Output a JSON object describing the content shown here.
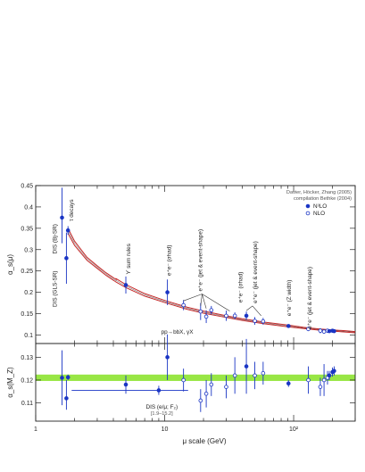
{
  "chart_data": [
    {
      "type": "line",
      "name": "alpha_s running",
      "ylabel": "α_s(μ)",
      "xscale": "log",
      "xlim": [
        1,
        300
      ],
      "ylim": [
        0.08,
        0.45
      ],
      "yticks": [
        0.1,
        0.15,
        0.2,
        0.25,
        0.3,
        0.35,
        0.4,
        0.45
      ],
      "ytick_labels": [
        "0.1",
        "0.15",
        "0.2",
        "0.25",
        "0.3",
        "0.35",
        "0.4",
        "0.45"
      ],
      "credit_lines": [
        "Davier, Höcker, Zhang (2005)",
        "compilation Bethke (2004)"
      ],
      "legend": [
        {
          "label": "N³LO",
          "marker": "filled"
        },
        {
          "label": "NLO",
          "marker": "open"
        }
      ],
      "band_curve": {
        "mu": [
          1.78,
          2,
          2.5,
          3,
          3.5,
          4.2,
          4.2,
          5,
          7,
          10,
          15,
          20,
          30,
          40,
          60,
          91.2,
          120,
          160,
          200,
          250,
          300
        ],
        "upper": [
          0.35,
          0.32,
          0.282,
          0.262,
          0.246,
          0.23,
          0.232,
          0.218,
          0.197,
          0.181,
          0.165,
          0.156,
          0.145,
          0.138,
          0.13,
          0.123,
          0.118,
          0.114,
          0.112,
          0.11,
          0.108
        ],
        "lower": [
          0.338,
          0.31,
          0.275,
          0.256,
          0.24,
          0.224,
          0.224,
          0.211,
          0.191,
          0.176,
          0.16,
          0.151,
          0.141,
          0.134,
          0.126,
          0.119,
          0.115,
          0.111,
          0.109,
          0.107,
          0.105
        ]
      },
      "points": [
        {
          "mu": 1.6,
          "alpha": 0.375,
          "err_lo": 0.06,
          "err_hi": 0.07,
          "marker": "filled"
        },
        {
          "mu": 1.73,
          "alpha": 0.28,
          "err_lo": 0.06,
          "err_hi": 0.06,
          "marker": "filled"
        },
        {
          "mu": 1.78,
          "alpha": 0.345,
          "err_lo": 0.01,
          "err_hi": 0.01,
          "marker": "filled"
        },
        {
          "mu": 5,
          "alpha": 0.217,
          "err_lo": 0.02,
          "err_hi": 0.02,
          "marker": "filled"
        },
        {
          "mu": 10.5,
          "alpha": 0.2,
          "err_lo": 0.03,
          "err_hi": 0.03,
          "marker": "filled"
        },
        {
          "mu": 14,
          "alpha": 0.17,
          "err_lo": 0.012,
          "err_hi": 0.012,
          "marker": "open"
        },
        {
          "mu": 19,
          "alpha": 0.155,
          "err_lo": 0.02,
          "err_hi": 0.02,
          "marker": "open"
        },
        {
          "mu": 21,
          "alpha": 0.143,
          "err_lo": 0.015,
          "err_hi": 0.015,
          "marker": "open"
        },
        {
          "mu": 23,
          "alpha": 0.158,
          "err_lo": 0.01,
          "err_hi": 0.01,
          "marker": "open"
        },
        {
          "mu": 30,
          "alpha": 0.145,
          "err_lo": 0.012,
          "err_hi": 0.012,
          "marker": "open"
        },
        {
          "mu": 35,
          "alpha": 0.145,
          "err_lo": 0.008,
          "err_hi": 0.008,
          "marker": "open"
        },
        {
          "mu": 43,
          "alpha": 0.145,
          "err_lo": 0.01,
          "err_hi": 0.01,
          "marker": "filled"
        },
        {
          "mu": 50,
          "alpha": 0.133,
          "err_lo": 0.009,
          "err_hi": 0.009,
          "marker": "open"
        },
        {
          "mu": 58,
          "alpha": 0.132,
          "err_lo": 0.008,
          "err_hi": 0.008,
          "marker": "open"
        },
        {
          "mu": 91.2,
          "alpha": 0.121,
          "err_lo": 0.003,
          "err_hi": 0.003,
          "marker": "filled"
        },
        {
          "mu": 130,
          "alpha": 0.114,
          "err_lo": 0.005,
          "err_hi": 0.005,
          "marker": "open"
        },
        {
          "mu": 161,
          "alpha": 0.11,
          "err_lo": 0.006,
          "err_hi": 0.006,
          "marker": "open"
        },
        {
          "mu": 172,
          "alpha": 0.108,
          "err_lo": 0.005,
          "err_hi": 0.005,
          "marker": "open"
        },
        {
          "mu": 183,
          "alpha": 0.11,
          "err_lo": 0.004,
          "err_hi": 0.004,
          "marker": "open"
        },
        {
          "mu": 189,
          "alpha": 0.109,
          "err_lo": 0.004,
          "err_hi": 0.004,
          "marker": "filled"
        },
        {
          "mu": 200,
          "alpha": 0.11,
          "err_lo": 0.004,
          "err_hi": 0.004,
          "marker": "filled"
        },
        {
          "mu": 206,
          "alpha": 0.109,
          "err_lo": 0.004,
          "err_hi": 0.004,
          "marker": "filled"
        }
      ],
      "annotations": [
        {
          "text": "DIS (Bj-SR)",
          "mu": 1.45,
          "alpha": 0.325,
          "vertical": true
        },
        {
          "text": "τ decays",
          "mu": 1.95,
          "alpha": 0.392,
          "vertical": true
        },
        {
          "text": "DIS (GLS-SR)",
          "mu": 1.45,
          "alpha": 0.208,
          "vertical": true
        },
        {
          "text": "ϒ sum rules",
          "mu": 5.4,
          "alpha": 0.278,
          "vertical": true
        },
        {
          "text": "e⁺e⁻ (σhad)",
          "mu": 11.2,
          "alpha": 0.275,
          "vertical": true
        },
        {
          "text": "e⁺e⁻ (jet & event-shape)",
          "mu": 19.5,
          "alpha": 0.275,
          "vertical": true
        },
        {
          "text": "e⁺e⁻ (σhad)",
          "mu": 40,
          "alpha": 0.212,
          "vertical": true
        },
        {
          "text": "e⁺e⁻ (jet & event-shape)",
          "mu": 52,
          "alpha": 0.247,
          "vertical": true
        },
        {
          "text": "e⁺e⁻ (Z width)",
          "mu": 95,
          "alpha": 0.187,
          "vertical": true
        },
        {
          "text": "e⁺e⁻ (jet & event-shape)",
          "mu": 137,
          "alpha": 0.187,
          "vertical": true
        },
        {
          "text": "pp→bbX, γX",
          "mu": 12.5,
          "alpha": 0.103,
          "vertical": false
        }
      ]
    },
    {
      "type": "scatter",
      "name": "alpha_s at MZ",
      "ylabel": "α_s(M_Z)",
      "xlabel": "μ scale     (GeV)",
      "xscale": "log",
      "xlim": [
        1,
        300
      ],
      "ylim": [
        0.102,
        0.136
      ],
      "yticks": [
        0.11,
        0.12,
        0.13
      ],
      "ytick_labels": [
        "0.11",
        "0.12",
        "0.13"
      ],
      "xticks": [
        1,
        10,
        100
      ],
      "xtick_labels": [
        "1",
        "10",
        "10²"
      ],
      "band": {
        "lower": 0.1196,
        "upper": 0.1224,
        "color": "#7ee017"
      },
      "annotations": [
        {
          "text": "DIS (e/μ; F₂)",
          "mu": 9.5,
          "alpha": 0.1075
        },
        {
          "text": "[1.9–15.2]",
          "mu": 9.5,
          "alpha": 0.1047
        }
      ],
      "points": [
        {
          "mu": 1.6,
          "alpha": 0.121,
          "err_lo": 0.012,
          "err_hi": 0.012,
          "marker": "filled"
        },
        {
          "mu": 1.73,
          "alpha": 0.112,
          "err_lo": 0.005,
          "err_hi": 0.008,
          "marker": "filled"
        },
        {
          "mu": 1.78,
          "alpha": 0.1212,
          "err_lo": 0.0012,
          "err_hi": 0.0012,
          "marker": "filled"
        },
        {
          "mu": 5,
          "alpha": 0.118,
          "err_lo": 0.004,
          "err_hi": 0.004,
          "marker": "filled"
        },
        {
          "mu": 9,
          "alpha": 0.1155,
          "err_lo": 0.002,
          "err_hi": 0.002,
          "marker": "filled",
          "xerr": [
            1.9,
            15.2
          ]
        },
        {
          "mu": 10.5,
          "alpha": 0.13,
          "err_lo": 0.01,
          "err_hi": 0.01,
          "marker": "filled"
        },
        {
          "mu": 14,
          "alpha": 0.12,
          "err_lo": 0.005,
          "err_hi": 0.005,
          "marker": "open"
        },
        {
          "mu": 19,
          "alpha": 0.111,
          "err_lo": 0.005,
          "err_hi": 0.005,
          "marker": "open"
        },
        {
          "mu": 21,
          "alpha": 0.114,
          "err_lo": 0.006,
          "err_hi": 0.006,
          "marker": "open"
        },
        {
          "mu": 23,
          "alpha": 0.118,
          "err_lo": 0.005,
          "err_hi": 0.005,
          "marker": "open"
        },
        {
          "mu": 30,
          "alpha": 0.117,
          "err_lo": 0.005,
          "err_hi": 0.005,
          "marker": "open"
        },
        {
          "mu": 35,
          "alpha": 0.122,
          "err_lo": 0.008,
          "err_hi": 0.008,
          "marker": "open"
        },
        {
          "mu": 43,
          "alpha": 0.126,
          "err_lo": 0.012,
          "err_hi": 0.012,
          "marker": "filled"
        },
        {
          "mu": 50,
          "alpha": 0.122,
          "err_lo": 0.006,
          "err_hi": 0.006,
          "marker": "open"
        },
        {
          "mu": 58,
          "alpha": 0.123,
          "err_lo": 0.005,
          "err_hi": 0.005,
          "marker": "open"
        },
        {
          "mu": 91.2,
          "alpha": 0.1185,
          "err_lo": 0.0015,
          "err_hi": 0.0015,
          "marker": "filled"
        },
        {
          "mu": 130,
          "alpha": 0.12,
          "err_lo": 0.006,
          "err_hi": 0.006,
          "marker": "open"
        },
        {
          "mu": 161,
          "alpha": 0.117,
          "err_lo": 0.004,
          "err_hi": 0.004,
          "marker": "open"
        },
        {
          "mu": 172,
          "alpha": 0.12,
          "err_lo": 0.007,
          "err_hi": 0.007,
          "marker": "open"
        },
        {
          "mu": 183,
          "alpha": 0.121,
          "err_lo": 0.003,
          "err_hi": 0.003,
          "marker": "open"
        },
        {
          "mu": 189,
          "alpha": 0.122,
          "err_lo": 0.002,
          "err_hi": 0.002,
          "marker": "filled"
        },
        {
          "mu": 200,
          "alpha": 0.1235,
          "err_lo": 0.002,
          "err_hi": 0.002,
          "marker": "filled"
        },
        {
          "mu": 206,
          "alpha": 0.124,
          "err_lo": 0.002,
          "err_hi": 0.002,
          "marker": "filled"
        }
      ]
    }
  ],
  "colors": {
    "band_curve": "#c62828",
    "marker": "#1a35c4",
    "band": "#7ee017"
  }
}
